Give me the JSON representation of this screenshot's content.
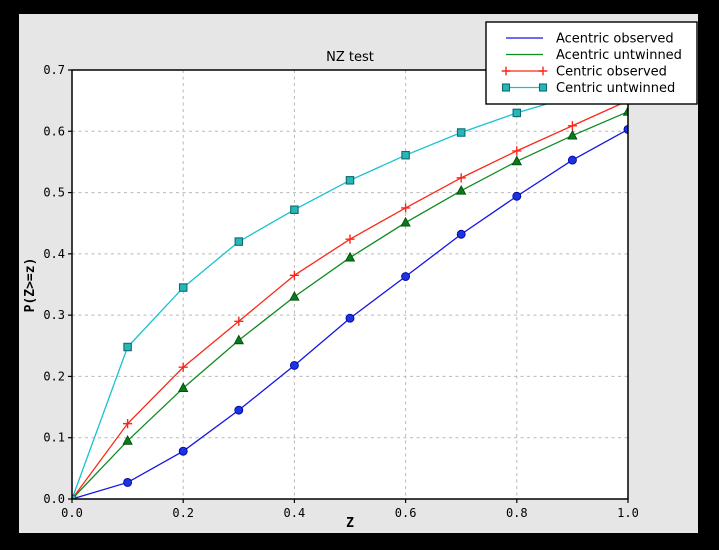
{
  "window": {
    "outer_bg": "#000000",
    "figure_bg": "#e6e6e6",
    "plot_bg": "#ffffff",
    "axis_color": "#000000",
    "grid_color": "#b9b9b9"
  },
  "chart_data": {
    "type": "line",
    "title": "NZ test",
    "xlabel": "Z",
    "ylabel": "P(Z>=z)",
    "xlim": [
      0.0,
      1.0
    ],
    "ylim": [
      0.0,
      0.7
    ],
    "xtick_values": [
      0.0,
      0.2,
      0.4,
      0.6,
      0.8,
      1.0
    ],
    "xtick_labels": [
      "0.0",
      "0.2",
      "0.4",
      "0.6",
      "0.8",
      "1.0"
    ],
    "ytick_values": [
      0.0,
      0.1,
      0.2,
      0.3,
      0.4,
      0.5,
      0.6,
      0.7
    ],
    "ytick_labels": [
      "0.0",
      "0.1",
      "0.2",
      "0.3",
      "0.4",
      "0.5",
      "0.6",
      "0.7"
    ],
    "grid": "dashed",
    "grid_x_values": [
      0.2,
      0.4,
      0.6,
      0.8
    ],
    "grid_y_values": [
      0.1,
      0.2,
      0.3,
      0.4,
      0.5,
      0.6
    ],
    "legend_position": "upper right",
    "x": [
      0.0,
      0.1,
      0.2,
      0.3,
      0.4,
      0.5,
      0.6,
      0.7,
      0.8,
      0.9,
      1.0
    ],
    "series": [
      {
        "name": "Acentric observed",
        "color": "#1414e6",
        "marker": "circle",
        "marker_fill": "#1a35e0",
        "marker_edge": "#0000a8",
        "legend_shows_marker": false,
        "values": [
          0.0,
          0.027,
          0.078,
          0.145,
          0.218,
          0.295,
          0.363,
          0.432,
          0.494,
          0.553,
          0.603
        ]
      },
      {
        "name": "Acentric untwinned",
        "color": "#0d8c1f",
        "marker": "triangle",
        "marker_fill": "#067d18",
        "marker_edge": "#034d0e",
        "legend_shows_marker": false,
        "values": [
          0.0,
          0.095,
          0.181,
          0.259,
          0.33,
          0.394,
          0.451,
          0.503,
          0.551,
          0.593,
          0.632
        ]
      },
      {
        "name": "Centric observed",
        "color": "#fb2818",
        "marker": "plus",
        "marker_fill": "#fb2818",
        "marker_edge": "#fb2818",
        "legend_shows_marker": true,
        "values": [
          0.0,
          0.123,
          0.215,
          0.29,
          0.365,
          0.424,
          0.475,
          0.524,
          0.568,
          0.609,
          0.65
        ]
      },
      {
        "name": "Centric untwinned",
        "color": "#17c3cf",
        "marker": "square",
        "marker_fill": "#26b8b8",
        "marker_edge": "#0e6b6b",
        "legend_shows_marker": true,
        "values": [
          0.0,
          0.248,
          0.345,
          0.42,
          0.472,
          0.52,
          0.561,
          0.598,
          0.63,
          0.657,
          0.683
        ]
      }
    ]
  }
}
